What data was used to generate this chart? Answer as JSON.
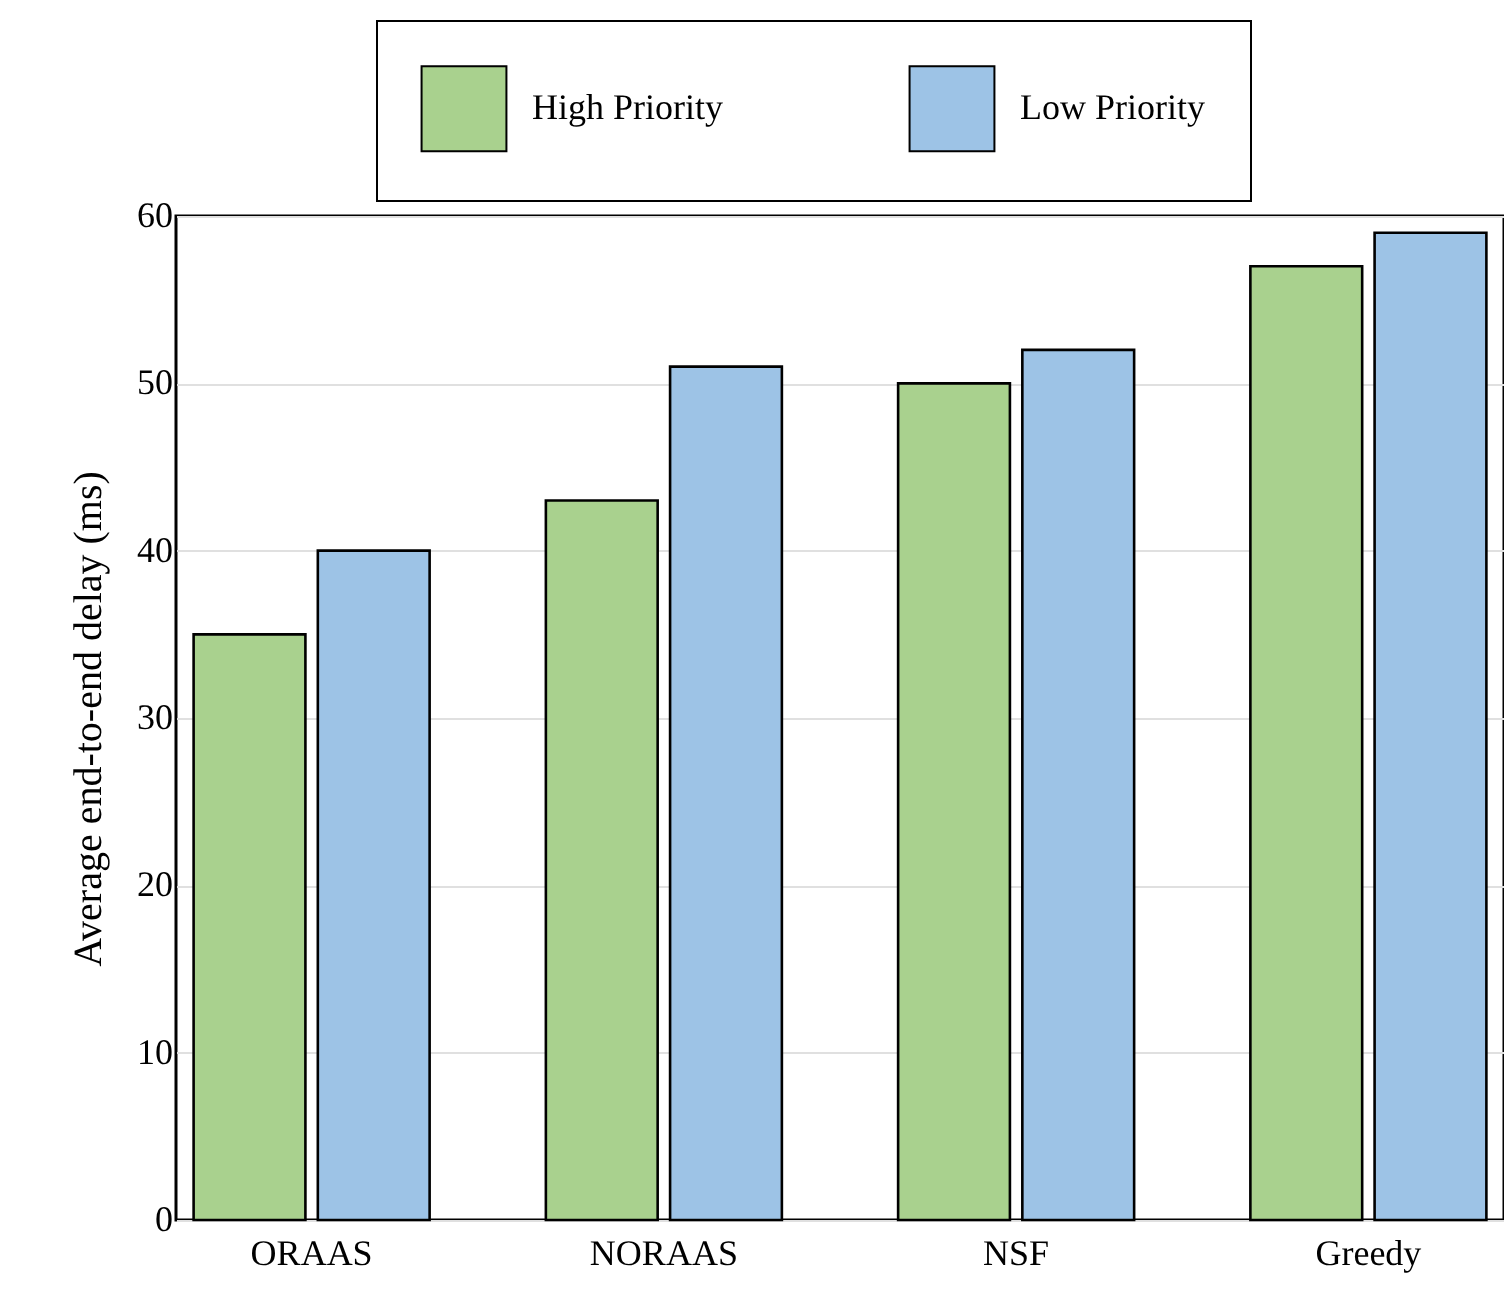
{
  "chart_data": {
    "type": "bar",
    "ylabel": "Average end-to-end delay (ms)",
    "categories": [
      "ORAAS",
      "NORAAS",
      "NSF",
      "Greedy"
    ],
    "series": [
      {
        "name": "High Priority",
        "color": "#a9d18e",
        "values": [
          35,
          43,
          50,
          57
        ]
      },
      {
        "name": "Low Priority",
        "color": "#9dc3e6",
        "values": [
          40,
          51,
          52,
          59
        ]
      }
    ],
    "ylim": [
      0,
      60
    ],
    "yticks": [
      0,
      10,
      20,
      30,
      40,
      50,
      60
    ],
    "grid": "y",
    "legend": "top"
  }
}
